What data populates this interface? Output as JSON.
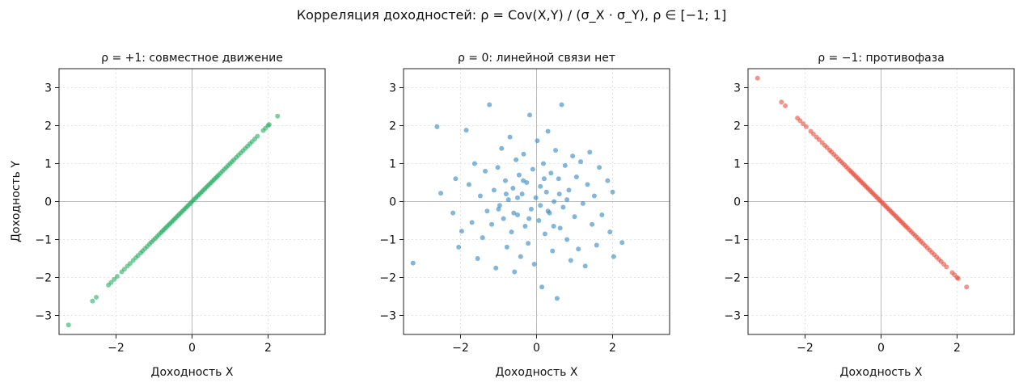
{
  "suptitle": "Корреляция доходностей: ρ = Cov(X,Y) / (σ_X · σ_Y),  ρ ∈ [−1; 1]",
  "chart_data": [
    {
      "type": "scatter",
      "title": "ρ = +1: совместное движение",
      "xlabel": "Доходность X",
      "ylabel": "Доходность Y",
      "xlim": [
        -3.5,
        3.5
      ],
      "ylim": [
        -3.5,
        3.5
      ],
      "xticks": [
        -2,
        0,
        2
      ],
      "xtick_labels": [
        "−2",
        "0",
        "2"
      ],
      "yticks": [
        -3,
        -2,
        -1,
        0,
        1,
        2,
        3
      ],
      "ytick_labels": [
        "−3",
        "−2",
        "−1",
        "0",
        "1",
        "2",
        "3"
      ],
      "grid": true,
      "color": "#27ae60",
      "points": [
        [
          -3.25,
          -3.25
        ],
        [
          -2.62,
          -2.62
        ],
        [
          -2.52,
          -2.52
        ],
        [
          -2.2,
          -2.2
        ],
        [
          -2.13,
          -2.13
        ],
        [
          -2.05,
          -2.05
        ],
        [
          -1.97,
          -1.97
        ],
        [
          -1.85,
          -1.85
        ],
        [
          -1.78,
          -1.78
        ],
        [
          -1.7,
          -1.7
        ],
        [
          -1.63,
          -1.63
        ],
        [
          -1.55,
          -1.55
        ],
        [
          -1.48,
          -1.48
        ],
        [
          -1.42,
          -1.42
        ],
        [
          -1.35,
          -1.35
        ],
        [
          -1.3,
          -1.3
        ],
        [
          -1.24,
          -1.24
        ],
        [
          -1.18,
          -1.18
        ],
        [
          -1.12,
          -1.12
        ],
        [
          -1.07,
          -1.07
        ],
        [
          -1.02,
          -1.02
        ],
        [
          -0.97,
          -0.97
        ],
        [
          -0.92,
          -0.92
        ],
        [
          -0.87,
          -0.87
        ],
        [
          -0.82,
          -0.82
        ],
        [
          -0.78,
          -0.78
        ],
        [
          -0.74,
          -0.74
        ],
        [
          -0.7,
          -0.7
        ],
        [
          -0.66,
          -0.66
        ],
        [
          -0.62,
          -0.62
        ],
        [
          -0.58,
          -0.58
        ],
        [
          -0.54,
          -0.54
        ],
        [
          -0.5,
          -0.5
        ],
        [
          -0.46,
          -0.46
        ],
        [
          -0.42,
          -0.42
        ],
        [
          -0.38,
          -0.38
        ],
        [
          -0.34,
          -0.34
        ],
        [
          -0.3,
          -0.3
        ],
        [
          -0.26,
          -0.26
        ],
        [
          -0.22,
          -0.22
        ],
        [
          -0.18,
          -0.18
        ],
        [
          -0.14,
          -0.14
        ],
        [
          -0.1,
          -0.1
        ],
        [
          -0.06,
          -0.06
        ],
        [
          -0.02,
          -0.02
        ],
        [
          0.02,
          0.02
        ],
        [
          0.06,
          0.06
        ],
        [
          0.1,
          0.1
        ],
        [
          0.14,
          0.14
        ],
        [
          0.18,
          0.18
        ],
        [
          0.22,
          0.22
        ],
        [
          0.26,
          0.26
        ],
        [
          0.3,
          0.3
        ],
        [
          0.34,
          0.34
        ],
        [
          0.38,
          0.38
        ],
        [
          0.42,
          0.42
        ],
        [
          0.46,
          0.46
        ],
        [
          0.5,
          0.5
        ],
        [
          0.54,
          0.54
        ],
        [
          0.58,
          0.58
        ],
        [
          0.62,
          0.62
        ],
        [
          0.66,
          0.66
        ],
        [
          0.7,
          0.7
        ],
        [
          0.75,
          0.75
        ],
        [
          0.8,
          0.8
        ],
        [
          0.85,
          0.85
        ],
        [
          0.9,
          0.9
        ],
        [
          0.95,
          0.95
        ],
        [
          1.0,
          1.0
        ],
        [
          1.05,
          1.05
        ],
        [
          1.1,
          1.1
        ],
        [
          1.16,
          1.16
        ],
        [
          1.22,
          1.22
        ],
        [
          1.28,
          1.28
        ],
        [
          1.34,
          1.34
        ],
        [
          1.4,
          1.4
        ],
        [
          1.46,
          1.46
        ],
        [
          1.52,
          1.52
        ],
        [
          1.58,
          1.58
        ],
        [
          1.65,
          1.65
        ],
        [
          1.72,
          1.72
        ],
        [
          1.87,
          1.87
        ],
        [
          1.93,
          1.93
        ],
        [
          2.0,
          2.0
        ],
        [
          2.03,
          2.03
        ],
        [
          2.25,
          2.25
        ]
      ]
    },
    {
      "type": "scatter",
      "title": "ρ = 0: линейной связи нет",
      "xlabel": "Доходность X",
      "ylabel": "",
      "xlim": [
        -3.5,
        3.5
      ],
      "ylim": [
        -3.5,
        3.5
      ],
      "xticks": [
        -2,
        0,
        2
      ],
      "xtick_labels": [
        "−2",
        "0",
        "2"
      ],
      "yticks": [
        -3,
        -2,
        -1,
        0,
        1,
        2,
        3
      ],
      "ytick_labels": [
        "−3",
        "−2",
        "−1",
        "0",
        "1",
        "2",
        "3"
      ],
      "grid": true,
      "color": "#2e86c1",
      "points": [
        [
          -3.25,
          -1.62
        ],
        [
          -2.62,
          1.97
        ],
        [
          -2.52,
          0.22
        ],
        [
          -2.2,
          -0.3
        ],
        [
          -2.13,
          0.6
        ],
        [
          -2.05,
          -1.2
        ],
        [
          -1.97,
          -0.78
        ],
        [
          -1.85,
          1.88
        ],
        [
          -1.78,
          0.45
        ],
        [
          -1.7,
          -0.55
        ],
        [
          -1.63,
          1.0
        ],
        [
          -1.55,
          -1.5
        ],
        [
          -1.48,
          0.15
        ],
        [
          -1.42,
          -0.95
        ],
        [
          -1.35,
          0.8
        ],
        [
          -1.3,
          -0.25
        ],
        [
          -1.24,
          2.55
        ],
        [
          -1.18,
          -0.6
        ],
        [
          -1.12,
          0.3
        ],
        [
          -1.07,
          -1.75
        ],
        [
          -1.02,
          0.9
        ],
        [
          -0.97,
          -0.1
        ],
        [
          -0.92,
          1.4
        ],
        [
          -0.87,
          -0.45
        ],
        [
          -0.82,
          0.55
        ],
        [
          -0.78,
          -1.2
        ],
        [
          -0.74,
          0.05
        ],
        [
          -0.7,
          1.7
        ],
        [
          -0.66,
          -0.8
        ],
        [
          -0.62,
          0.35
        ],
        [
          -0.58,
          -1.85
        ],
        [
          -0.54,
          1.1
        ],
        [
          -0.5,
          -0.35
        ],
        [
          -0.46,
          0.7
        ],
        [
          -0.42,
          -1.45
        ],
        [
          -0.38,
          0.2
        ],
        [
          -0.34,
          1.25
        ],
        [
          -0.3,
          -0.65
        ],
        [
          -0.26,
          0.5
        ],
        [
          -0.22,
          -1.1
        ],
        [
          -0.18,
          2.28
        ],
        [
          -0.14,
          -0.2
        ],
        [
          -0.1,
          0.85
        ],
        [
          -0.06,
          -1.65
        ],
        [
          -0.02,
          0.1
        ],
        [
          0.02,
          1.6
        ],
        [
          0.06,
          -0.5
        ],
        [
          0.1,
          0.4
        ],
        [
          0.14,
          -2.25
        ],
        [
          0.18,
          1.0
        ],
        [
          0.22,
          -0.85
        ],
        [
          0.26,
          0.25
        ],
        [
          0.3,
          1.85
        ],
        [
          0.34,
          -0.3
        ],
        [
          0.38,
          0.75
        ],
        [
          0.42,
          -1.3
        ],
        [
          0.46,
          0.0
        ],
        [
          0.5,
          1.35
        ],
        [
          0.54,
          -2.55
        ],
        [
          0.58,
          0.6
        ],
        [
          0.62,
          -0.7
        ],
        [
          0.66,
          2.55
        ],
        [
          0.7,
          -0.15
        ],
        [
          0.75,
          0.95
        ],
        [
          0.8,
          -1.0
        ],
        [
          0.85,
          0.3
        ],
        [
          0.9,
          -1.55
        ],
        [
          0.95,
          1.2
        ],
        [
          1.0,
          -0.4
        ],
        [
          1.05,
          0.65
        ],
        [
          1.1,
          -1.25
        ],
        [
          1.16,
          1.05
        ],
        [
          1.22,
          -0.05
        ],
        [
          1.28,
          -1.7
        ],
        [
          1.34,
          0.45
        ],
        [
          1.4,
          1.3
        ],
        [
          1.46,
          -0.6
        ],
        [
          1.52,
          0.15
        ],
        [
          1.58,
          -1.15
        ],
        [
          1.65,
          0.9
        ],
        [
          1.72,
          -0.35
        ],
        [
          1.87,
          0.55
        ],
        [
          1.93,
          -0.8
        ],
        [
          2.0,
          0.25
        ],
        [
          2.03,
          -1.45
        ],
        [
          2.25,
          -1.08
        ],
        [
          -1.0,
          -0.2
        ],
        [
          -0.5,
          0.1
        ],
        [
          0.1,
          -0.1
        ],
        [
          0.3,
          -0.25
        ],
        [
          0.6,
          0.2
        ],
        [
          -0.2,
          -0.45
        ],
        [
          0.8,
          0.05
        ],
        [
          -0.8,
          0.2
        ],
        [
          0.45,
          -0.65
        ],
        [
          -0.35,
          0.55
        ],
        [
          0.2,
          0.6
        ],
        [
          -0.6,
          -0.3
        ]
      ]
    },
    {
      "type": "scatter",
      "title": "ρ = −1: противофаза",
      "xlabel": "Доходность X",
      "ylabel": "",
      "xlim": [
        -3.5,
        3.5
      ],
      "ylim": [
        -3.5,
        3.5
      ],
      "xticks": [
        -2,
        0,
        2
      ],
      "xtick_labels": [
        "−2",
        "0",
        "2"
      ],
      "yticks": [
        -3,
        -2,
        -1,
        0,
        1,
        2,
        3
      ],
      "ytick_labels": [
        "−3",
        "−2",
        "−1",
        "0",
        "1",
        "2",
        "3"
      ],
      "grid": true,
      "color": "#e74c3c",
      "points": [
        [
          -3.25,
          3.25
        ],
        [
          -2.62,
          2.62
        ],
        [
          -2.52,
          2.52
        ],
        [
          -2.2,
          2.2
        ],
        [
          -2.13,
          2.13
        ],
        [
          -2.05,
          2.05
        ],
        [
          -1.97,
          1.97
        ],
        [
          -1.85,
          1.85
        ],
        [
          -1.78,
          1.78
        ],
        [
          -1.7,
          1.7
        ],
        [
          -1.63,
          1.63
        ],
        [
          -1.55,
          1.55
        ],
        [
          -1.48,
          1.48
        ],
        [
          -1.42,
          1.42
        ],
        [
          -1.35,
          1.35
        ],
        [
          -1.3,
          1.3
        ],
        [
          -1.24,
          1.24
        ],
        [
          -1.18,
          1.18
        ],
        [
          -1.12,
          1.12
        ],
        [
          -1.07,
          1.07
        ],
        [
          -1.02,
          1.02
        ],
        [
          -0.97,
          0.97
        ],
        [
          -0.92,
          0.92
        ],
        [
          -0.87,
          0.87
        ],
        [
          -0.82,
          0.82
        ],
        [
          -0.78,
          0.78
        ],
        [
          -0.74,
          0.74
        ],
        [
          -0.7,
          0.7
        ],
        [
          -0.66,
          0.66
        ],
        [
          -0.62,
          0.62
        ],
        [
          -0.58,
          0.58
        ],
        [
          -0.54,
          0.54
        ],
        [
          -0.5,
          0.5
        ],
        [
          -0.46,
          0.46
        ],
        [
          -0.42,
          0.42
        ],
        [
          -0.38,
          0.38
        ],
        [
          -0.34,
          0.34
        ],
        [
          -0.3,
          0.3
        ],
        [
          -0.26,
          0.26
        ],
        [
          -0.22,
          0.22
        ],
        [
          -0.18,
          0.18
        ],
        [
          -0.14,
          0.14
        ],
        [
          -0.1,
          0.1
        ],
        [
          -0.06,
          0.06
        ],
        [
          -0.02,
          0.02
        ],
        [
          0.02,
          -0.02
        ],
        [
          0.06,
          -0.06
        ],
        [
          0.1,
          -0.1
        ],
        [
          0.14,
          -0.14
        ],
        [
          0.18,
          -0.18
        ],
        [
          0.22,
          -0.22
        ],
        [
          0.26,
          -0.26
        ],
        [
          0.3,
          -0.3
        ],
        [
          0.34,
          -0.34
        ],
        [
          0.38,
          -0.38
        ],
        [
          0.42,
          -0.42
        ],
        [
          0.46,
          -0.46
        ],
        [
          0.5,
          -0.5
        ],
        [
          0.54,
          -0.54
        ],
        [
          0.58,
          -0.58
        ],
        [
          0.62,
          -0.62
        ],
        [
          0.66,
          -0.66
        ],
        [
          0.7,
          -0.7
        ],
        [
          0.75,
          -0.75
        ],
        [
          0.8,
          -0.8
        ],
        [
          0.85,
          -0.85
        ],
        [
          0.9,
          -0.9
        ],
        [
          0.95,
          -0.95
        ],
        [
          1.0,
          -1.0
        ],
        [
          1.05,
          -1.05
        ],
        [
          1.1,
          -1.1
        ],
        [
          1.16,
          -1.16
        ],
        [
          1.22,
          -1.22
        ],
        [
          1.28,
          -1.28
        ],
        [
          1.34,
          -1.34
        ],
        [
          1.4,
          -1.4
        ],
        [
          1.46,
          -1.46
        ],
        [
          1.52,
          -1.52
        ],
        [
          1.58,
          -1.58
        ],
        [
          1.65,
          -1.65
        ],
        [
          1.72,
          -1.72
        ],
        [
          1.87,
          -1.87
        ],
        [
          1.93,
          -1.93
        ],
        [
          2.0,
          -2.0
        ],
        [
          2.03,
          -2.03
        ],
        [
          2.25,
          -2.25
        ]
      ]
    }
  ]
}
